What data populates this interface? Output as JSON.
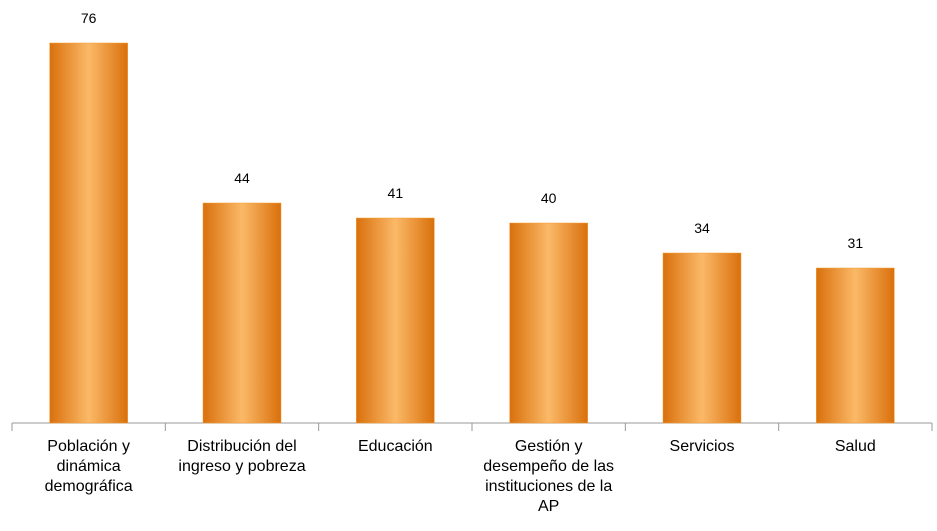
{
  "chart_data": {
    "type": "bar",
    "categories": [
      "Población y dinámica demográfica",
      "Distribución del ingreso y pobreza",
      "Educación",
      "Gestión y desempeño de las instituciones de la AP",
      "Servicios",
      "Salud"
    ],
    "values": [
      76,
      44,
      41,
      40,
      34,
      31
    ],
    "color": "#f39c34"
  }
}
